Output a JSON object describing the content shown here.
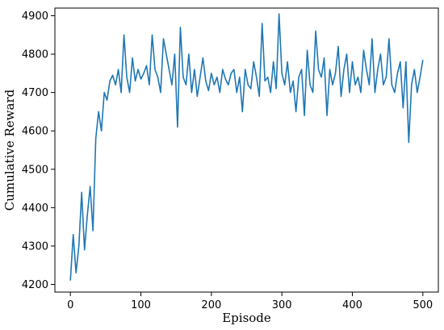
{
  "chart_data": {
    "type": "line",
    "title": "",
    "xlabel": "Episode",
    "ylabel": "Cumulative Reward",
    "xlim": [
      -22,
      522
    ],
    "ylim": [
      4180,
      4920
    ],
    "xticks": [
      0,
      100,
      200,
      300,
      400,
      500
    ],
    "yticks": [
      4200,
      4300,
      4400,
      4500,
      4600,
      4700,
      4800,
      4900
    ],
    "grid": false,
    "legend": "none",
    "line_color": "#1f77b4",
    "series": [
      {
        "x": [
          0,
          4,
          8,
          12,
          16,
          20,
          24,
          28,
          32,
          36,
          40,
          44,
          48,
          52,
          56,
          60,
          64,
          68,
          72,
          76,
          80,
          84,
          88,
          92,
          96,
          100,
          104,
          108,
          112,
          116,
          120,
          124,
          128,
          132,
          136,
          140,
          144,
          148,
          152,
          156,
          160,
          164,
          168,
          172,
          176,
          180,
          184,
          188,
          192,
          196,
          200,
          204,
          208,
          212,
          216,
          220,
          224,
          228,
          232,
          236,
          240,
          244,
          248,
          252,
          256,
          260,
          264,
          268,
          272,
          276,
          280,
          284,
          288,
          292,
          296,
          300,
          304,
          308,
          312,
          316,
          320,
          324,
          328,
          332,
          336,
          340,
          344,
          348,
          352,
          356,
          360,
          364,
          368,
          372,
          376,
          380,
          384,
          388,
          392,
          396,
          400,
          404,
          408,
          412,
          416,
          420,
          424,
          428,
          432,
          436,
          440,
          444,
          448,
          452,
          456,
          460,
          464,
          468,
          472,
          476,
          480,
          484,
          488,
          492,
          496,
          500
        ],
        "values": [
          4210,
          4330,
          4230,
          4300,
          4440,
          4290,
          4380,
          4455,
          4340,
          4580,
          4650,
          4600,
          4700,
          4680,
          4730,
          4745,
          4720,
          4760,
          4700,
          4850,
          4740,
          4700,
          4790,
          4730,
          4760,
          4735,
          4750,
          4770,
          4720,
          4850,
          4760,
          4740,
          4700,
          4840,
          4800,
          4760,
          4720,
          4800,
          4610,
          4870,
          4740,
          4720,
          4800,
          4700,
          4760,
          4690,
          4740,
          4790,
          4730,
          4705,
          4750,
          4720,
          4740,
          4700,
          4760,
          4735,
          4720,
          4750,
          4760,
          4700,
          4740,
          4650,
          4760,
          4720,
          4710,
          4780,
          4740,
          4690,
          4880,
          4730,
          4740,
          4700,
          4780,
          4710,
          4905,
          4750,
          4720,
          4780,
          4700,
          4730,
          4650,
          4740,
          4760,
          4640,
          4810,
          4720,
          4700,
          4860,
          4760,
          4740,
          4790,
          4640,
          4760,
          4720,
          4750,
          4820,
          4690,
          4760,
          4800,
          4700,
          4780,
          4720,
          4740,
          4700,
          4810,
          4760,
          4720,
          4840,
          4700,
          4760,
          4800,
          4720,
          4740,
          4840,
          4720,
          4700,
          4750,
          4780,
          4660,
          4780,
          4570,
          4720,
          4760,
          4700,
          4740,
          4785
        ]
      }
    ]
  }
}
